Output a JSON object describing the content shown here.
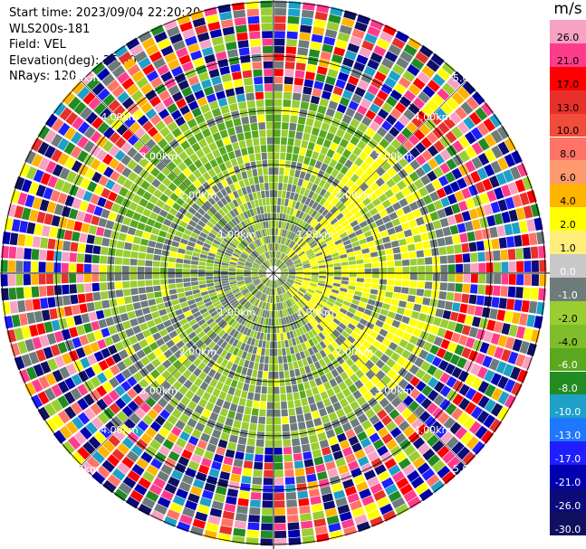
{
  "header": {
    "start_time": "Start time: 2023/09/04 22:20:20",
    "instrument": "WLS200s-181",
    "field": "Field: VEL",
    "elevation": "Elevation(deg): 35.30",
    "nrays": "NRays: 120"
  },
  "colorbar": {
    "unit": "m/s",
    "labels": [
      "26.0",
      "21.0",
      "17.0",
      "13.0",
      "10.0",
      "8.0",
      "6.0",
      "4.0",
      "2.0",
      "1.0",
      "0.0",
      "-1.0",
      "-2.0",
      "-4.0",
      "-6.0",
      "-8.0",
      "-10.0",
      "-13.0",
      "-17.0",
      "-21.0",
      "-26.0",
      "-30.0"
    ],
    "colors": [
      "#f7a1c3",
      "#ff3c8c",
      "#ff0000",
      "#e8302a",
      "#f24c3a",
      "#ff7466",
      "#ff9a70",
      "#ffb400",
      "#ffff00",
      "#ffef7a",
      "#c8c8c8",
      "#6e7b7b",
      "#9acd32",
      "#7fbd2c",
      "#5aa820",
      "#228b22",
      "#1ea0c8",
      "#1e78ff",
      "#1e1eff",
      "#0000b0",
      "#0b0b7a",
      "#101060"
    ]
  },
  "range_rings": {
    "labels": [
      "1.00km",
      "2.00km",
      "3.00km",
      "4.00km",
      "5.00km"
    ]
  },
  "ppi": {
    "rays": 120,
    "gates": 36,
    "max_range_km": 5.0
  }
}
